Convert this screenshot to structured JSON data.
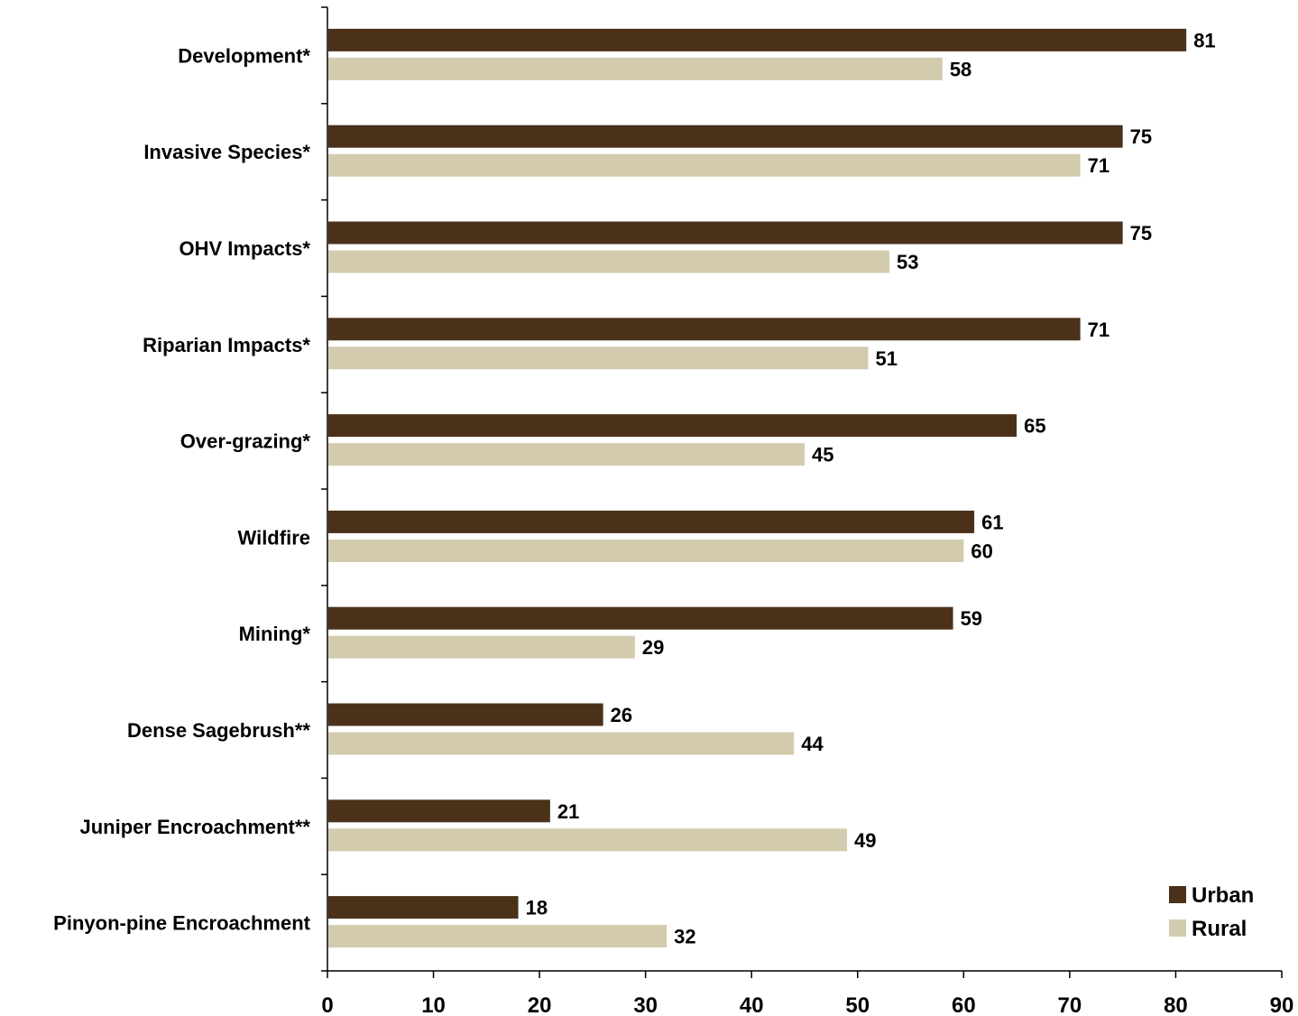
{
  "chart_data": {
    "type": "bar",
    "orientation": "horizontal",
    "title": "",
    "xlabel": "",
    "ylabel": "",
    "categories": [
      "Development*",
      "Invasive Species*",
      "OHV Impacts*",
      "Riparian Impacts*",
      "Over-grazing*",
      "Wildfire",
      "Mining*",
      "Dense Sagebrush**",
      "Juniper Encroachment**",
      "Pinyon-pine Encroachment"
    ],
    "series": [
      {
        "name": "Urban",
        "color": "#4b311a",
        "values": [
          81,
          75,
          75,
          71,
          65,
          61,
          59,
          26,
          21,
          18
        ]
      },
      {
        "name": "Rural",
        "color": "#d3cbad",
        "values": [
          58,
          71,
          53,
          51,
          45,
          60,
          29,
          44,
          49,
          32
        ]
      }
    ],
    "xlim": [
      0,
      90
    ],
    "xticks": [
      0,
      10,
      20,
      30,
      40,
      50,
      60,
      70,
      80,
      90
    ],
    "data_labels": true,
    "grid": false,
    "legend_position": "bottom-right"
  }
}
